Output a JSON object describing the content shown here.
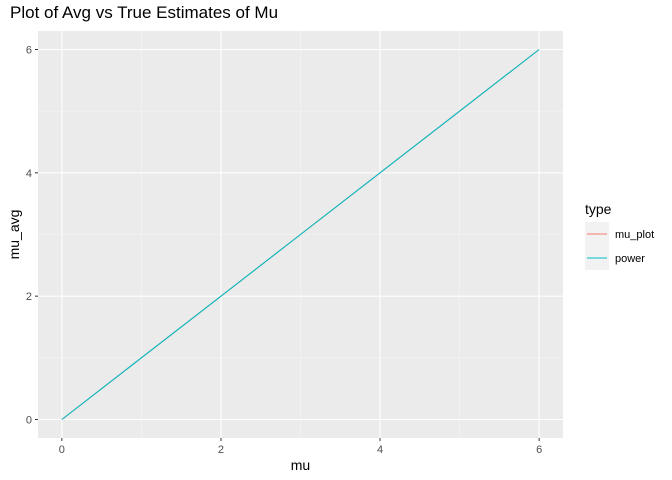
{
  "chart_data": {
    "type": "line",
    "title": "Plot of Avg vs True Estimates of Mu",
    "xlabel": "mu",
    "ylabel": "mu_avg",
    "xlim": [
      -0.3,
      6.3
    ],
    "ylim": [
      -0.3,
      6.3
    ],
    "x_ticks": [
      0,
      2,
      4,
      6
    ],
    "y_ticks": [
      0,
      2,
      4,
      6
    ],
    "x_tick_labels": [
      "0",
      "2",
      "4",
      "6"
    ],
    "y_tick_labels": [
      "0",
      "2",
      "4",
      "6"
    ],
    "grid": true,
    "legend": {
      "title": "type",
      "position": "right",
      "entries": [
        {
          "name": "mu_plot",
          "color": "#F8766D"
        },
        {
          "name": "power",
          "color": "#00BFC4"
        }
      ]
    },
    "x": [
      0,
      1,
      2,
      3,
      4,
      5,
      6
    ],
    "series": [
      {
        "name": "mu_plot",
        "color": "#F8766D",
        "values": [
          0,
          1,
          2,
          3,
          4,
          5,
          6
        ]
      },
      {
        "name": "power",
        "color": "#00BFC4",
        "values": [
          0,
          1,
          2,
          3,
          4,
          5,
          6
        ]
      }
    ]
  },
  "colors": {
    "panel_background": "#EBEBEB",
    "grid_major": "#FFFFFF",
    "grid_minor": "#F5F5F5"
  }
}
